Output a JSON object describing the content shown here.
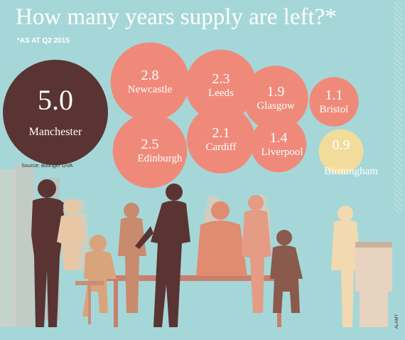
{
  "header": {
    "title": "How many years supply are left?*",
    "subtitle": "*AS AT Q2 2015"
  },
  "source": "Source: Bilfinger GVA",
  "credit": "ALAMY",
  "colors": {
    "background": "#a6d7d8",
    "bubble_primary": "#5a3432",
    "bubble_mid": "#ef8a7a",
    "bubble_low": "#f2dc9c",
    "bubble_text_light": "#ffffff",
    "bubble_text_dark": "#5a3432"
  },
  "chart_data": {
    "type": "bubble",
    "title": "How many years supply are left?*",
    "note": "*AS AT Q2 2015",
    "source": "Source: Bilfinger GVA",
    "series": [
      {
        "city": "Manchester",
        "value": 5.0,
        "label": "5.0"
      },
      {
        "city": "Newcastle",
        "value": 2.8,
        "label": "2.8"
      },
      {
        "city": "Leeds",
        "value": 2.3,
        "label": "2.3"
      },
      {
        "city": "Glasgow",
        "value": 1.9,
        "label": "1.9"
      },
      {
        "city": "Bristol",
        "value": 1.1,
        "label": "1.1"
      },
      {
        "city": "Edinburgh",
        "value": 2.5,
        "label": "2.5"
      },
      {
        "city": "Cardiff",
        "value": 2.1,
        "label": "2.1"
      },
      {
        "city": "Liverpool",
        "value": 1.4,
        "label": "1.4"
      },
      {
        "city": "Birmingham",
        "value": 0.9,
        "label": "0.9"
      }
    ]
  }
}
